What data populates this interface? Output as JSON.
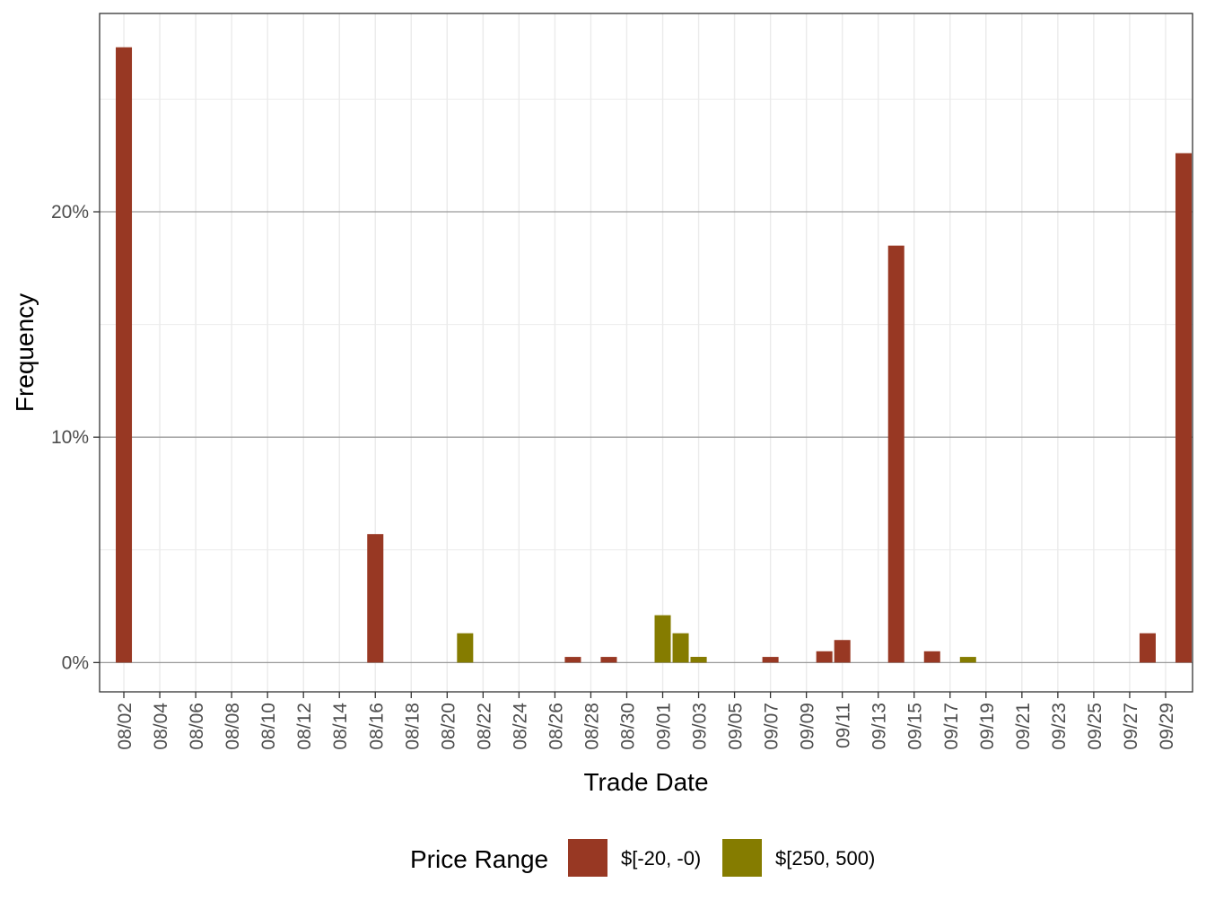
{
  "chart_data": {
    "type": "bar",
    "title": "",
    "xlabel": "Trade Date",
    "ylabel": "Frequency",
    "ylim": [
      -0.013,
      0.288
    ],
    "y_ticks": [
      {
        "value": 0,
        "label": "0%"
      },
      {
        "value": 0.1,
        "label": "10%"
      },
      {
        "value": 0.2,
        "label": "20%"
      }
    ],
    "x_tick_labels": [
      "08/02",
      "08/04",
      "08/06",
      "08/08",
      "08/10",
      "08/12",
      "08/14",
      "08/16",
      "08/18",
      "08/20",
      "08/22",
      "08/24",
      "08/26",
      "08/28",
      "08/30",
      "09/01",
      "09/03",
      "09/05",
      "09/07",
      "09/09",
      "09/11",
      "09/13",
      "09/15",
      "09/17",
      "09/19",
      "09/21",
      "09/23",
      "09/25",
      "09/27",
      "09/29"
    ],
    "x_range_dates": [
      "2023-08-01",
      "2023-09-30"
    ],
    "grid": true,
    "legend_title": "Price Range",
    "legend_position": "bottom",
    "series": [
      {
        "name": "$[-20, -0)",
        "color": "#983823",
        "points": [
          {
            "date": "08/02",
            "value": 0.273
          },
          {
            "date": "08/16",
            "value": 0.057
          },
          {
            "date": "08/27",
            "value": 0.0025
          },
          {
            "date": "08/29",
            "value": 0.0025
          },
          {
            "date": "09/03",
            "value": 0.0025
          },
          {
            "date": "09/07",
            "value": 0.0025
          },
          {
            "date": "09/10",
            "value": 0.005
          },
          {
            "date": "09/11",
            "value": 0.01
          },
          {
            "date": "09/14",
            "value": 0.185
          },
          {
            "date": "09/16",
            "value": 0.005
          },
          {
            "date": "09/28",
            "value": 0.013
          },
          {
            "date": "09/30",
            "value": 0.226
          }
        ]
      },
      {
        "name": "$[250, 500)",
        "color": "#857c00",
        "points": [
          {
            "date": "08/21",
            "value": 0.013
          },
          {
            "date": "09/01",
            "value": 0.021
          },
          {
            "date": "09/02",
            "value": 0.013
          },
          {
            "date": "09/03",
            "value": 0.0025
          },
          {
            "date": "09/18",
            "value": 0.0025
          }
        ]
      }
    ]
  }
}
